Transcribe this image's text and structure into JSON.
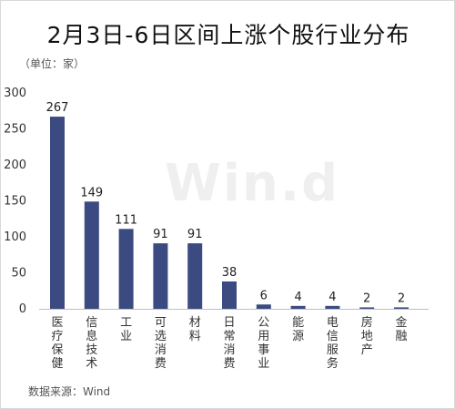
{
  "chart_data": {
    "type": "bar",
    "title": "2月3日-6日区间上涨个股行业分布",
    "unit_label": "（单位：家）",
    "source": "数据来源：Wind",
    "watermark": "Win.d",
    "categories": [
      "医疗保健",
      "信息技术",
      "工业",
      "可选消费",
      "材料",
      "日常消费",
      "公用事业",
      "能源",
      "电信服务",
      "房地产",
      "金融"
    ],
    "values": [
      267,
      149,
      111,
      91,
      91,
      38,
      6,
      4,
      4,
      2,
      2
    ],
    "ylim": [
      0,
      300
    ],
    "yticks": [
      0,
      50,
      100,
      150,
      200,
      250,
      300
    ],
    "grid": false,
    "legend": "none",
    "bar_color": "#3b4a80"
  }
}
